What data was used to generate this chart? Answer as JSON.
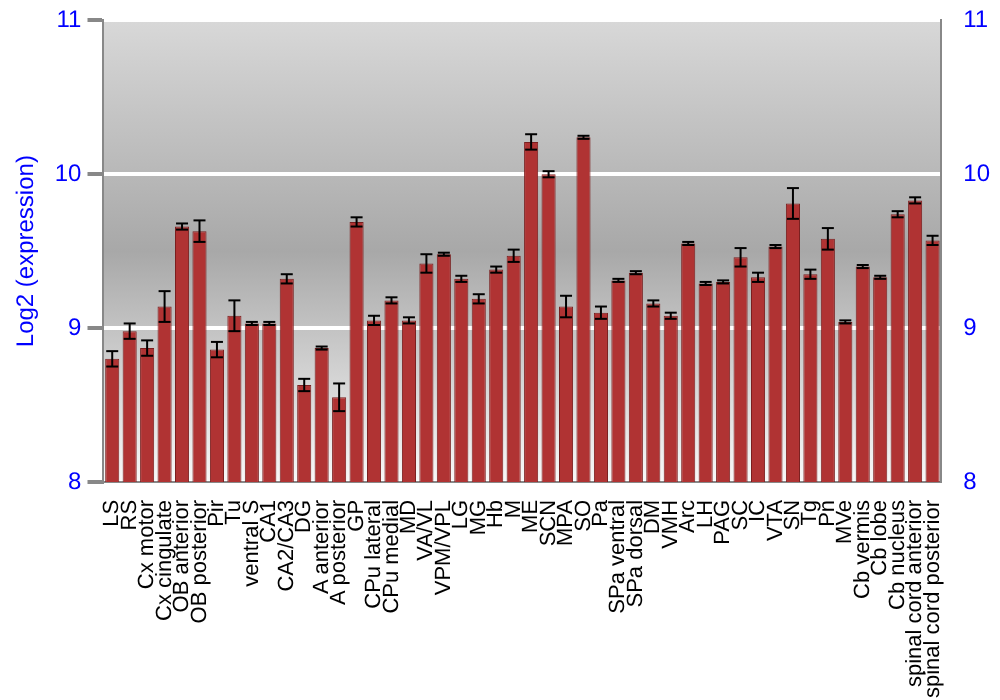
{
  "chart_data": {
    "type": "bar",
    "ylabel": "Log2 (expression)",
    "categories": [
      "LS",
      "RS",
      "Cx motor",
      "Cx cingulate",
      "OB anterior",
      "OB posterior",
      "Pir",
      "Tu",
      "ventral S",
      "CA1",
      "CA2/CA3",
      "DG",
      "A anterior",
      "A posterior",
      "GP",
      "CPu lateral",
      "CPu medial",
      "MD",
      "VA/VL",
      "VPM/VPL",
      "LG",
      "MG",
      "Hb",
      "M",
      "ME",
      "SCN",
      "MPA",
      "SO",
      "Pa",
      "SPa ventral",
      "SPa dorsal",
      "DM",
      "VMH",
      "Arc",
      "LH",
      "PAG",
      "SC",
      "IC",
      "VTA",
      "SN",
      "Tg",
      "Pn",
      "MVe",
      "Cb vermis",
      "Cb lobe",
      "Cb nucleus",
      "spinal cord anterior",
      "spinal cord posterior"
    ],
    "values": [
      8.8,
      8.98,
      8.87,
      9.14,
      9.66,
      9.63,
      8.86,
      9.08,
      9.03,
      9.03,
      9.32,
      8.63,
      8.87,
      8.55,
      9.69,
      9.05,
      9.18,
      9.05,
      9.42,
      9.48,
      9.32,
      9.19,
      9.38,
      9.47,
      10.21,
      10.0,
      9.14,
      10.24,
      9.1,
      9.31,
      9.36,
      9.16,
      9.08,
      9.55,
      9.29,
      9.3,
      9.46,
      9.33,
      9.53,
      9.81,
      9.35,
      9.58,
      9.04,
      9.4,
      9.33,
      9.74,
      9.83,
      9.57
    ],
    "errors": [
      0.05,
      0.05,
      0.05,
      0.1,
      0.02,
      0.07,
      0.05,
      0.1,
      0.01,
      0.01,
      0.03,
      0.04,
      0.01,
      0.09,
      0.03,
      0.03,
      0.02,
      0.02,
      0.06,
      0.01,
      0.02,
      0.03,
      0.02,
      0.04,
      0.05,
      0.02,
      0.07,
      0.01,
      0.04,
      0.01,
      0.01,
      0.02,
      0.02,
      0.01,
      0.01,
      0.01,
      0.06,
      0.03,
      0.01,
      0.1,
      0.03,
      0.07,
      0.01,
      0.01,
      0.01,
      0.02,
      0.02,
      0.03
    ],
    "color": "#b03333",
    "ylim": [
      8,
      11
    ],
    "yticks": [
      8,
      9,
      10,
      11
    ],
    "y2lim": [
      8,
      11
    ],
    "y2ticks": [
      8,
      9,
      10,
      11
    ],
    "grid": "y",
    "legend": false
  }
}
